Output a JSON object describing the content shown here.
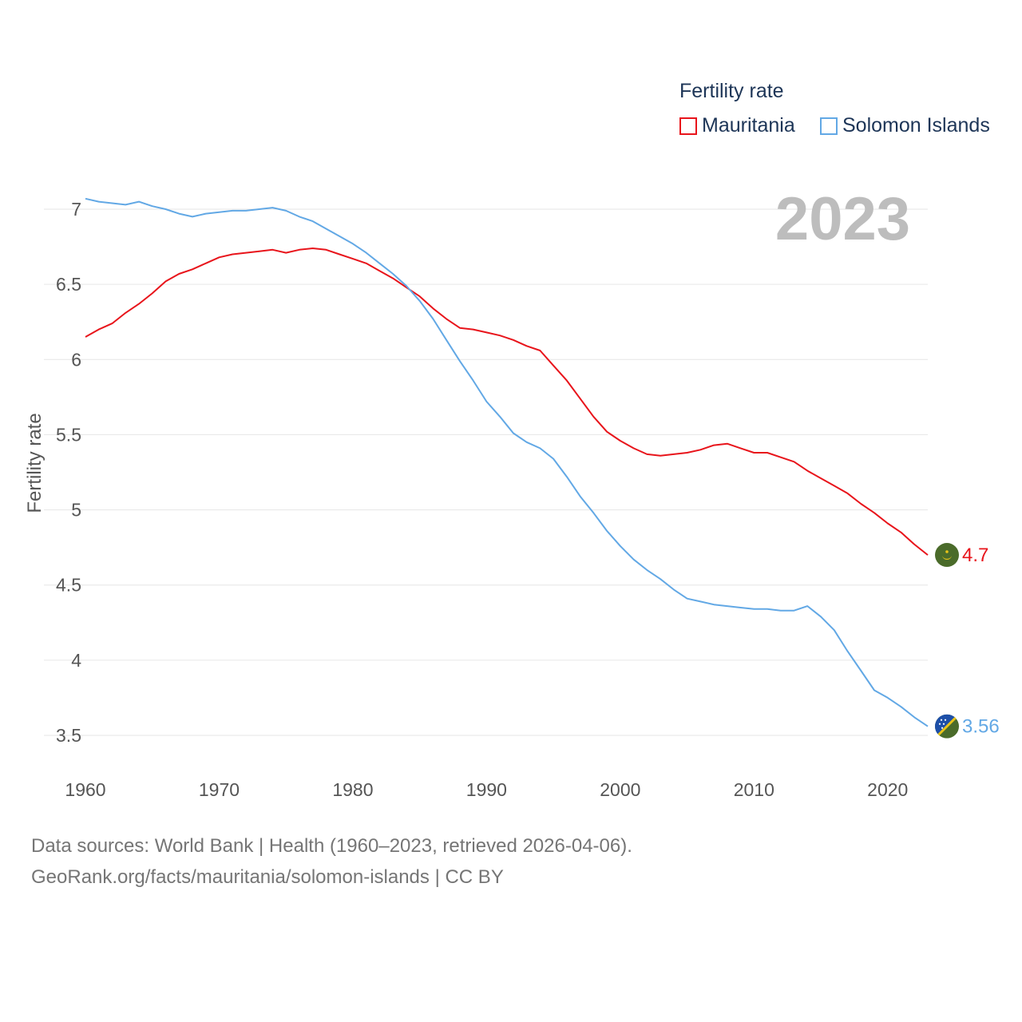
{
  "legend": {
    "title": "Fertility rate",
    "items": [
      {
        "label": "Mauritania",
        "color": "#e8141b"
      },
      {
        "label": "Solomon Islands",
        "color": "#62a8e5"
      }
    ]
  },
  "source": {
    "line1": "Data sources: World Bank | Health (1960–2023, retrieved 2026-04-06).",
    "line2": "GeoRank.org/facts/mauritania/solomon-islands | CC BY"
  },
  "chart_data": {
    "type": "line",
    "title": "Fertility rate",
    "year_label": "2023",
    "ylabel": "Fertility rate",
    "xlabel": "",
    "xlim": [
      1960,
      2023
    ],
    "ylim": [
      3.25,
      7.0
    ],
    "x_ticks": [
      "1960",
      "1970",
      "1980",
      "1990",
      "2000",
      "2010",
      "2020"
    ],
    "y_ticks": [
      "3.5",
      "4",
      "4.5",
      "5",
      "5.5",
      "6",
      "6.5",
      "7"
    ],
    "x": [
      1960,
      1961,
      1962,
      1963,
      1964,
      1965,
      1966,
      1967,
      1968,
      1969,
      1970,
      1971,
      1972,
      1973,
      1974,
      1975,
      1976,
      1977,
      1978,
      1979,
      1980,
      1981,
      1982,
      1983,
      1984,
      1985,
      1986,
      1987,
      1988,
      1989,
      1990,
      1991,
      1992,
      1993,
      1994,
      1995,
      1996,
      1997,
      1998,
      1999,
      2000,
      2001,
      2002,
      2003,
      2004,
      2005,
      2006,
      2007,
      2008,
      2009,
      2010,
      2011,
      2012,
      2013,
      2014,
      2015,
      2016,
      2017,
      2018,
      2019,
      2020,
      2021,
      2022,
      2023
    ],
    "series": [
      {
        "name": "Mauritania",
        "color": "#e8141b",
        "end_label": "4.7",
        "flag": "mauritania-flag-icon",
        "values": [
          6.15,
          6.2,
          6.24,
          6.31,
          6.37,
          6.44,
          6.52,
          6.57,
          6.6,
          6.64,
          6.68,
          6.7,
          6.71,
          6.72,
          6.73,
          6.71,
          6.73,
          6.74,
          6.73,
          6.7,
          6.67,
          6.64,
          6.59,
          6.54,
          6.48,
          6.42,
          6.34,
          6.27,
          6.21,
          6.2,
          6.18,
          6.16,
          6.13,
          6.09,
          6.06,
          5.96,
          5.86,
          5.74,
          5.62,
          5.52,
          5.46,
          5.41,
          5.37,
          5.36,
          5.37,
          5.38,
          5.4,
          5.43,
          5.44,
          5.41,
          5.38,
          5.38,
          5.35,
          5.32,
          5.26,
          5.21,
          5.16,
          5.11,
          5.04,
          4.98,
          4.91,
          4.85,
          4.77,
          4.7
        ]
      },
      {
        "name": "Solomon Islands",
        "color": "#62a8e5",
        "end_label": "3.56",
        "flag": "solomon-islands-flag-icon",
        "values": [
          7.07,
          7.05,
          7.04,
          7.03,
          7.05,
          7.02,
          7.0,
          6.97,
          6.95,
          6.97,
          6.98,
          6.99,
          6.99,
          7.0,
          7.01,
          6.99,
          6.95,
          6.92,
          6.87,
          6.82,
          6.77,
          6.71,
          6.64,
          6.57,
          6.49,
          6.39,
          6.27,
          6.13,
          5.99,
          5.86,
          5.72,
          5.62,
          5.51,
          5.45,
          5.41,
          5.34,
          5.22,
          5.09,
          4.98,
          4.86,
          4.76,
          4.67,
          4.6,
          4.54,
          4.47,
          4.41,
          4.39,
          4.37,
          4.36,
          4.35,
          4.34,
          4.34,
          4.33,
          4.33,
          4.36,
          4.29,
          4.2,
          4.06,
          3.93,
          3.8,
          3.75,
          3.69,
          3.62,
          3.56
        ]
      }
    ]
  }
}
